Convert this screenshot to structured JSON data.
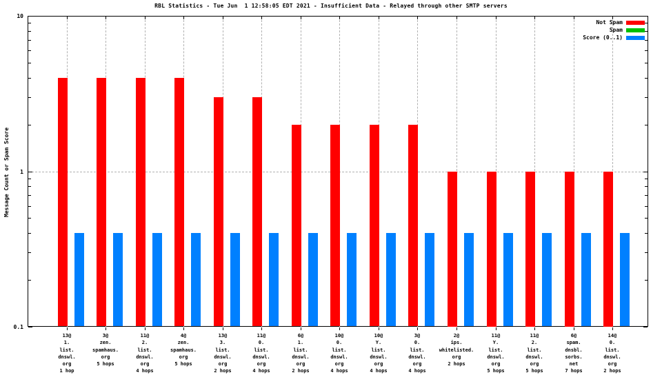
{
  "title": "RBL Statistics - Tue Jun  1 12:58:05 EDT 2021 - Insufficient Data - Relayed through other SMTP servers",
  "ylabel": "Message Count or Spam Score",
  "legend": [
    {
      "label": "Not Spam",
      "color": "#ff0000"
    },
    {
      "label": "Spam",
      "color": "#00c000"
    },
    {
      "label": "Score (0..1)",
      "color": "#0080ff"
    }
  ],
  "chart_data": {
    "type": "bar",
    "title": "RBL Statistics - Tue Jun  1 12:58:05 EDT 2021 - Insufficient Data - Relayed through other SMTP servers",
    "ylabel": "Message Count or Spam Score",
    "y_scale": "log10",
    "ylim": [
      0.1,
      10
    ],
    "yticks": [
      "0.1",
      "1",
      "10"
    ],
    "y_gridlines": [
      1
    ],
    "grid": true,
    "legend_position": "top-right-inside",
    "categories": [
      [
        "13@",
        "1.",
        "list.",
        "dnswl.",
        "org",
        "1 hop"
      ],
      [
        "3@",
        "zen.",
        "spamhaus.",
        "org",
        "5 hops"
      ],
      [
        "11@",
        "2.",
        "list.",
        "dnswl.",
        "org",
        "4 hops"
      ],
      [
        "4@",
        "zen.",
        "spamhaus.",
        "org",
        "5 hops"
      ],
      [
        "13@",
        "3.",
        "list.",
        "dnswl.",
        "org",
        "2 hops"
      ],
      [
        "11@",
        "0.",
        "list.",
        "dnswl.",
        "org",
        "4 hops"
      ],
      [
        "6@",
        "1.",
        "list.",
        "dnswl.",
        "org",
        "2 hops"
      ],
      [
        "10@",
        "0.",
        "list.",
        "dnswl.",
        "org",
        "4 hops"
      ],
      [
        "10@",
        "Y.",
        "list.",
        "dnswl.",
        "org",
        "4 hops"
      ],
      [
        "3@",
        "0.",
        "list.",
        "dnswl.",
        "org",
        "4 hops"
      ],
      [
        "2@",
        "ips.",
        "whitelisted.",
        "org",
        "2 hops"
      ],
      [
        "11@",
        "Y.",
        "list.",
        "dnswl.",
        "org",
        "5 hops"
      ],
      [
        "11@",
        "2.",
        "list.",
        "dnswl.",
        "org",
        "5 hops"
      ],
      [
        "6@",
        "spam.",
        "dnsbl.",
        "sorbs.",
        "net",
        "7 hops"
      ],
      [
        "14@",
        "0.",
        "list.",
        "dnswl.",
        "org",
        "2 hops"
      ]
    ],
    "series": [
      {
        "name": "Not Spam",
        "color": "#ff0000",
        "values": [
          4,
          4,
          4,
          4,
          3,
          3,
          2,
          2,
          2,
          2,
          1,
          1,
          1,
          1,
          1
        ]
      },
      {
        "name": "Spam",
        "color": "#00c000",
        "values": [
          0,
          0,
          0,
          0,
          0,
          0,
          0,
          0,
          0,
          0,
          0,
          0,
          0,
          0,
          0
        ]
      },
      {
        "name": "Score (0..1)",
        "color": "#0080ff",
        "values": [
          0.4,
          0.4,
          0.4,
          0.4,
          0.4,
          0.4,
          0.4,
          0.4,
          0.4,
          0.4,
          0.4,
          0.4,
          0.4,
          0.4,
          0.4
        ]
      }
    ]
  }
}
